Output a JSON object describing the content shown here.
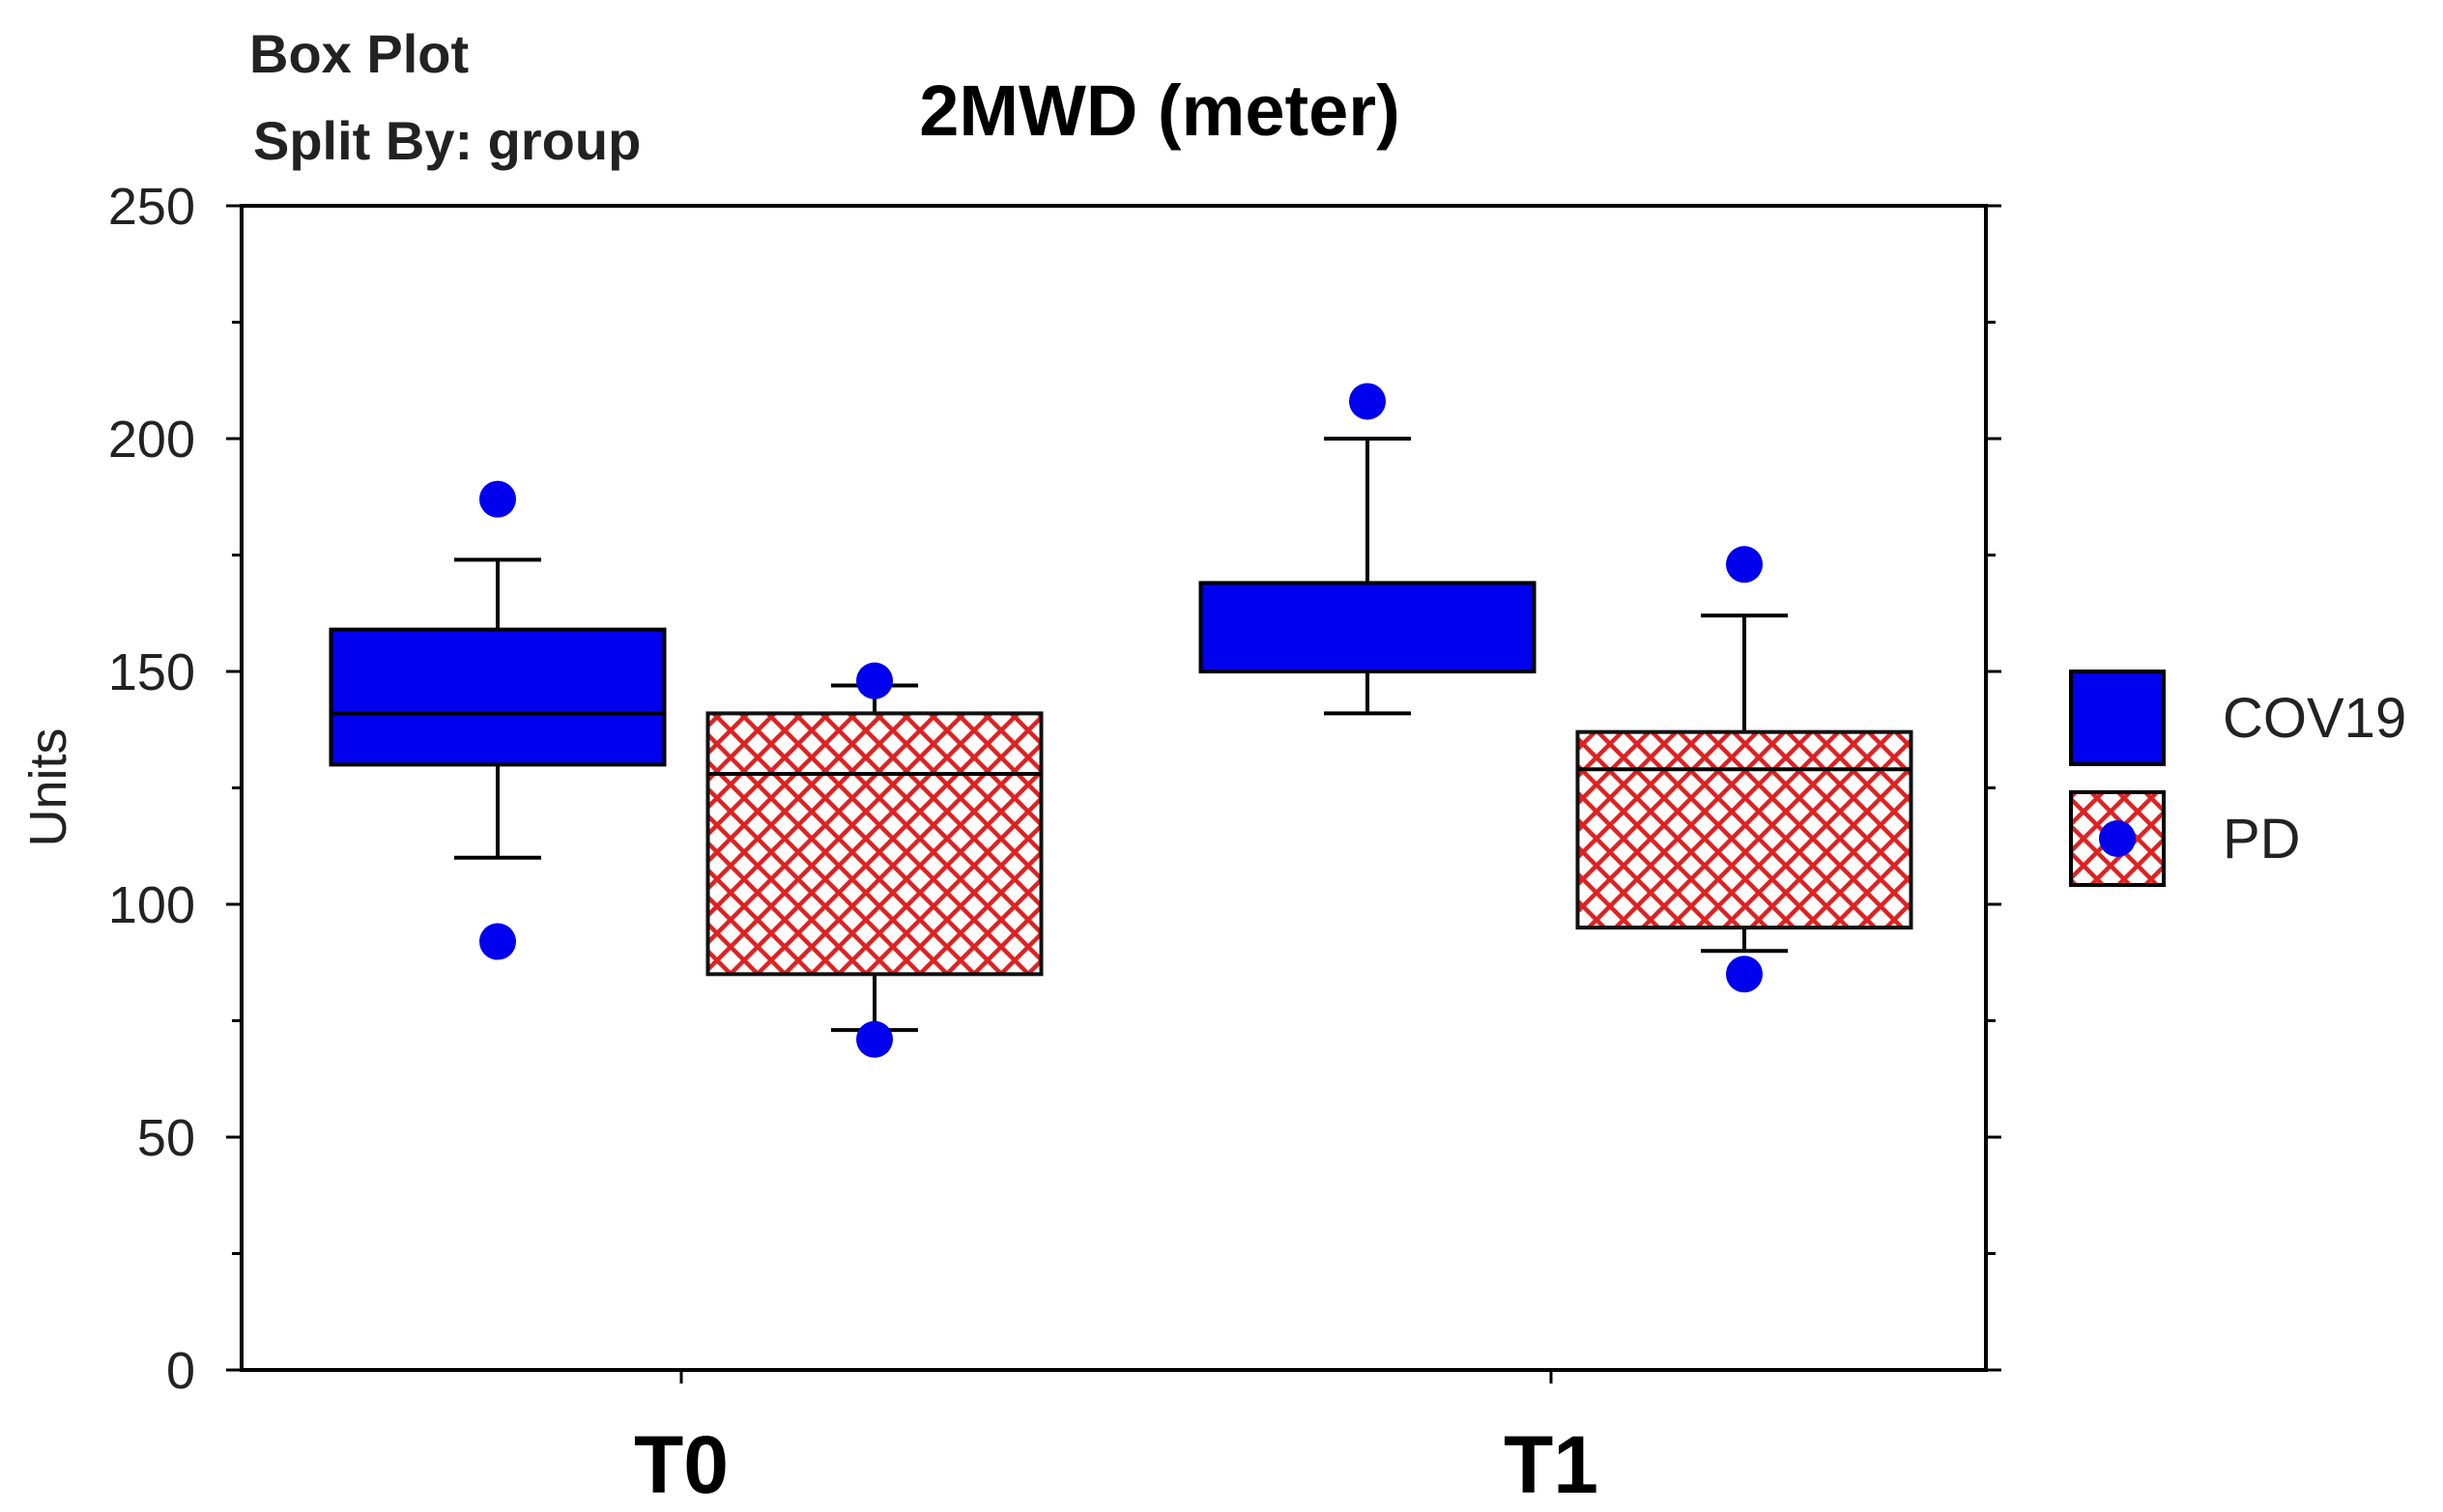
{
  "header": {
    "line1": "Box Plot",
    "line2": "Split By: group"
  },
  "chart_data": {
    "type": "box",
    "title": "2MWD (meter)",
    "xlabel": "",
    "ylabel": "Units",
    "ylim": [
      0,
      250
    ],
    "yticks": [
      0,
      50,
      100,
      150,
      200,
      250
    ],
    "categories": [
      "T0",
      "T1"
    ],
    "legend_position": "right",
    "series": [
      {
        "name": "COV19",
        "fill": "#0000ee",
        "pattern": "solid",
        "boxes": [
          {
            "category": "T0",
            "whisker_low": 110,
            "q1": 130,
            "median": 141,
            "q3": 159,
            "whisker_high": 174,
            "outliers": [
              187,
              92
            ]
          },
          {
            "category": "T1",
            "whisker_low": 141,
            "q1": 150,
            "median": 150,
            "q3": 169,
            "whisker_high": 200,
            "outliers": [
              208
            ]
          }
        ]
      },
      {
        "name": "PD",
        "fill": "#dd2222",
        "pattern": "crosshatch",
        "boxes": [
          {
            "category": "T0",
            "whisker_low": 73,
            "q1": 85,
            "median": 128,
            "q3": 141,
            "whisker_high": 147,
            "outliers": [
              148,
              71
            ]
          },
          {
            "category": "T1",
            "whisker_low": 90,
            "q1": 95,
            "median": 129,
            "q3": 137,
            "whisker_high": 162,
            "outliers": [
              173,
              85
            ]
          }
        ]
      }
    ],
    "colors": {
      "axis": "#000000",
      "outlier": "#0000ee",
      "cov_box": "#0000ee",
      "pd_line": "#dd2222"
    }
  }
}
